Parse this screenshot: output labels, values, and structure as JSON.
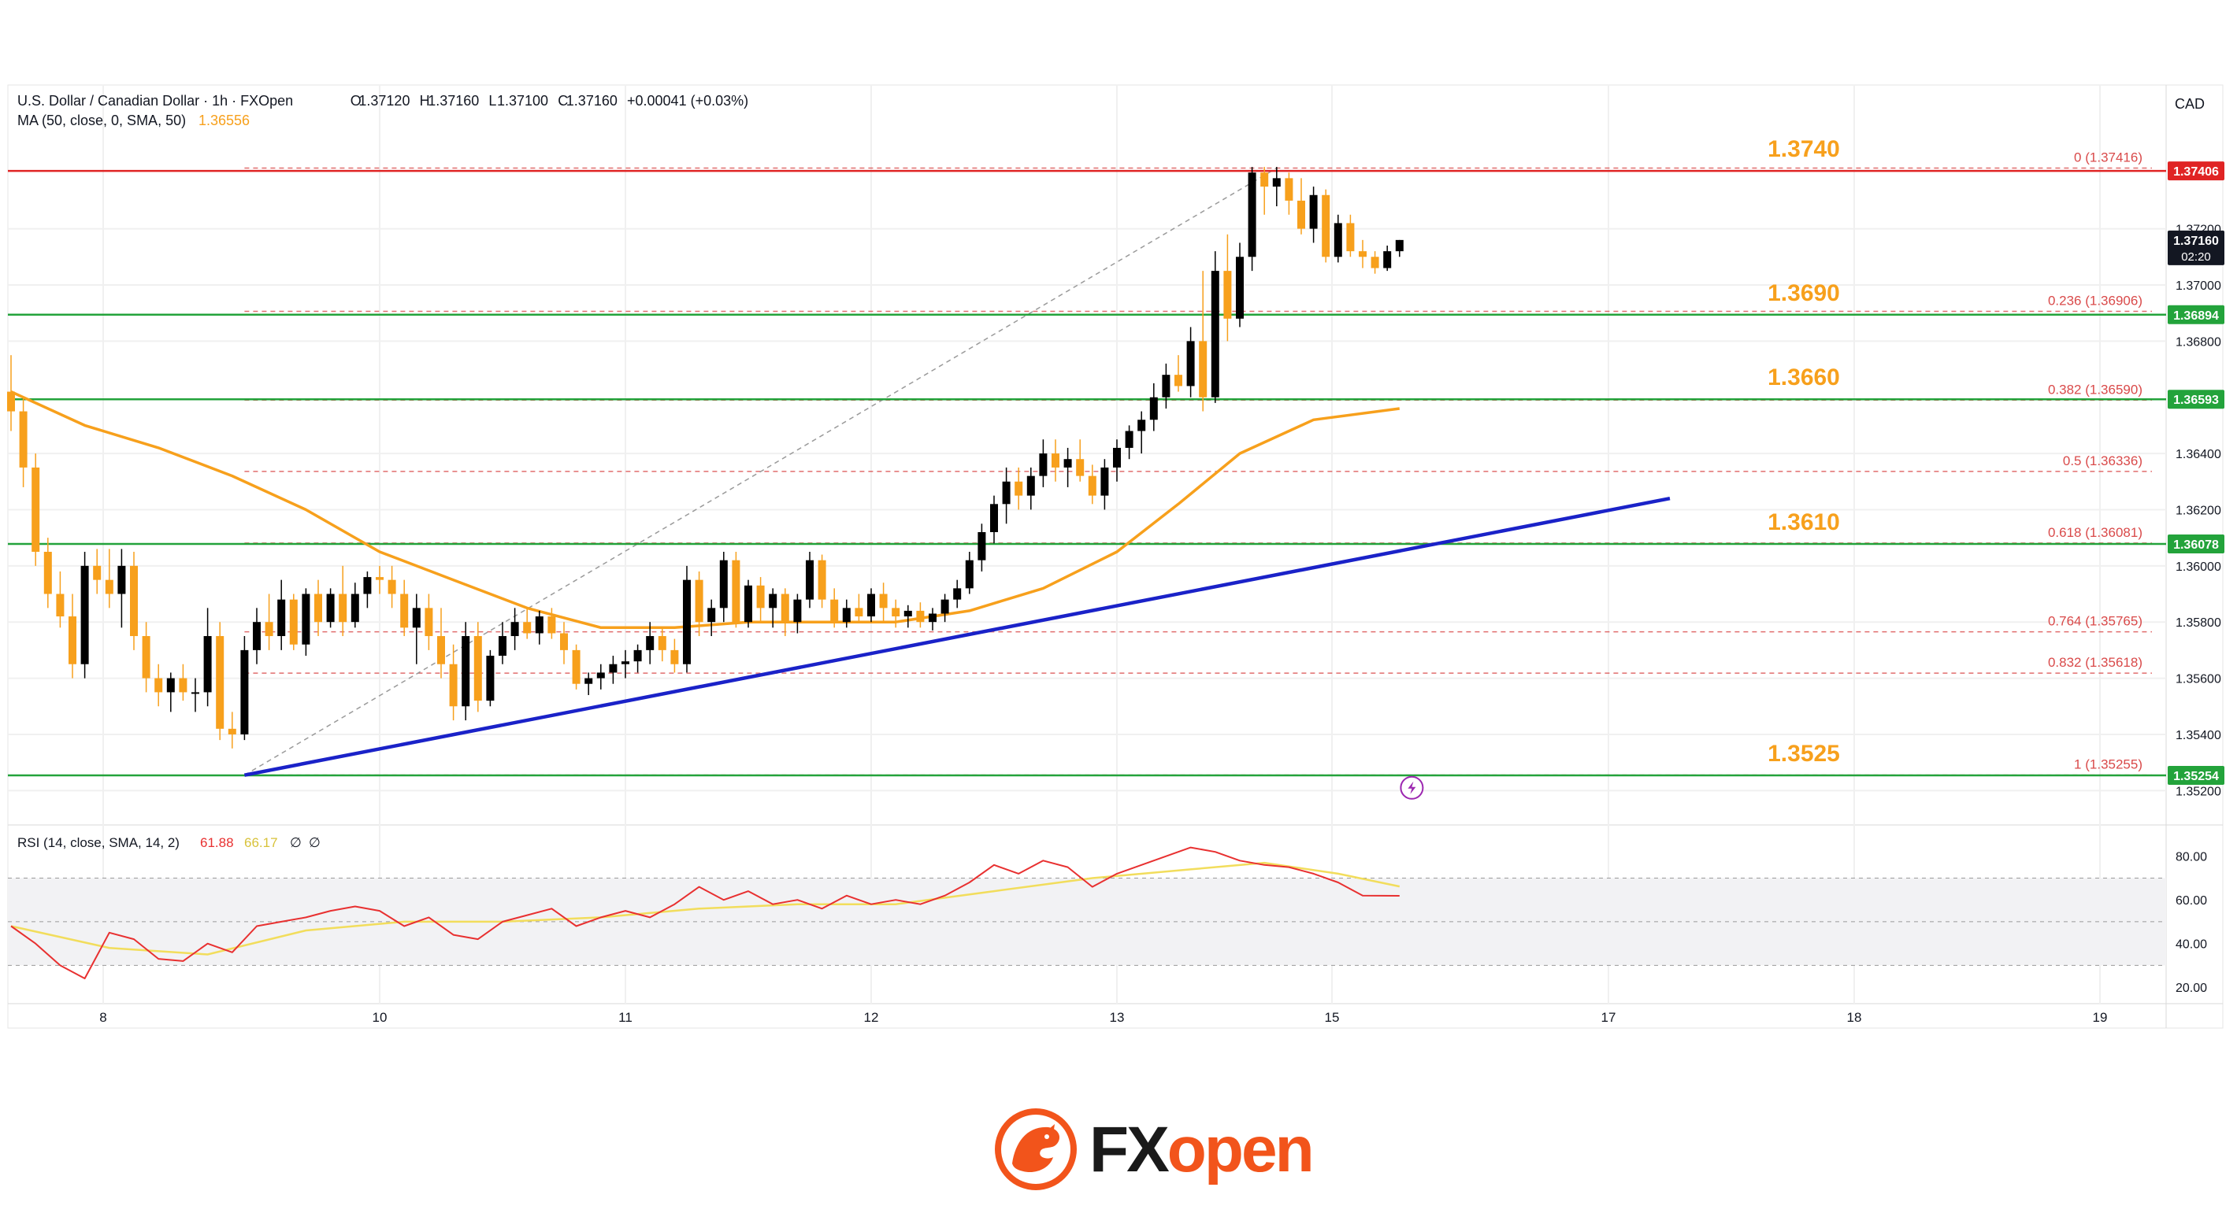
{
  "header": {
    "symbol": "U.S. Dollar / Canadian Dollar · 1h · FXOpen",
    "o_label": "O",
    "o_value": "1.37120",
    "h_label": "H",
    "h_value": "1.37160",
    "l_label": "L",
    "l_value": "1.37100",
    "c_label": "C",
    "c_value": "1.37160",
    "change": "+0.00041 (+0.03%)",
    "ma_label": "MA (50, close, 0, SMA, 50)",
    "ma_value": "1.36556"
  },
  "currency": "CAD",
  "rsi_header": {
    "label": "RSI (14, close, SMA, 14, 2)",
    "rsi_value": "61.88",
    "sma_value": "66.17",
    "extra1": "∅",
    "extra2": "∅"
  },
  "brand": {
    "fx": "FX",
    "open": "open"
  },
  "colors": {
    "up": "#000000",
    "down": "#f7a01c",
    "ma": "#f7a01c",
    "trendline": "#1a22c8",
    "support": "#23a33b",
    "resistance": "#e02424",
    "fib": "#d94a4a",
    "level_label": "#f7a01c",
    "rsi": "#e83030",
    "rsi_ma": "#f2dd5c",
    "brand": "#f2541b"
  },
  "chart_data": {
    "type": "candlestick",
    "ylim": [
      1.351,
      1.3765
    ],
    "x_ticks": [
      {
        "label": "8",
        "t": 7.5
      },
      {
        "label": "10",
        "t": 30
      },
      {
        "label": "11",
        "t": 50
      },
      {
        "label": "12",
        "t": 70
      },
      {
        "label": "13",
        "t": 90
      },
      {
        "label": "15",
        "t": 107.5
      },
      {
        "label": "17",
        "t": 130
      },
      {
        "label": "18",
        "t": 150
      },
      {
        "label": "19",
        "t": 170
      }
    ],
    "y_ticks": [
      "1.37200",
      "1.37000",
      "1.36800",
      "1.36400",
      "1.36200",
      "1.36000",
      "1.35800",
      "1.35600",
      "1.35400",
      "1.35200"
    ],
    "price_tags": [
      {
        "value": 1.37406,
        "text": "1.37406",
        "bg": "#e02424",
        "fg": "#ffffff"
      },
      {
        "value": 1.3716,
        "text": "1.37160",
        "sub": "02:20",
        "bg": "#131722",
        "fg": "#ffffff"
      },
      {
        "value": 1.36894,
        "text": "1.36894",
        "bg": "#23a33b",
        "fg": "#ffffff"
      },
      {
        "value": 1.36593,
        "text": "1.36593",
        "bg": "#23a33b",
        "fg": "#ffffff"
      },
      {
        "value": 1.36078,
        "text": "1.36078",
        "bg": "#23a33b",
        "fg": "#ffffff"
      },
      {
        "value": 1.35254,
        "text": "1.35254",
        "bg": "#23a33b",
        "fg": "#ffffff"
      }
    ],
    "levels": [
      {
        "label": "1.3740",
        "value": 1.37406,
        "kind": "resistance"
      },
      {
        "label": "1.3690",
        "value": 1.36894,
        "kind": "support"
      },
      {
        "label": "1.3660",
        "value": 1.36593,
        "kind": "support"
      },
      {
        "label": "1.3610",
        "value": 1.36078,
        "kind": "support"
      },
      {
        "label": "1.3525",
        "value": 1.35254,
        "kind": "support"
      }
    ],
    "fib_levels": [
      {
        "label": "0 (1.37416)",
        "value": 1.37416
      },
      {
        "label": "0.236 (1.36906)",
        "value": 1.36906
      },
      {
        "label": "0.382 (1.36590)",
        "value": 1.3659
      },
      {
        "label": "0.5 (1.36336)",
        "value": 1.36336
      },
      {
        "label": "0.618 (1.36081)",
        "value": 1.36081
      },
      {
        "label": "0.764 (1.35765)",
        "value": 1.35765
      },
      {
        "label": "0.832 (1.35618)",
        "value": 1.35618
      },
      {
        "label": "1 (1.35255)",
        "value": 1.35255
      }
    ],
    "fib_start_t": 19,
    "trendline": {
      "t1": 19,
      "v1": 1.35255,
      "t2": 135,
      "v2": 1.3624
    },
    "fib_diagonal": {
      "t1": 19,
      "v1": 1.35255,
      "t2": 103,
      "v2": 1.37416
    },
    "candles": [
      [
        0,
        1.3662,
        1.3675,
        1.3648,
        1.3655
      ],
      [
        1,
        1.3655,
        1.366,
        1.3628,
        1.3635
      ],
      [
        2,
        1.3635,
        1.364,
        1.36,
        1.3605
      ],
      [
        3,
        1.3605,
        1.361,
        1.3585,
        1.359
      ],
      [
        4,
        1.359,
        1.3598,
        1.3578,
        1.3582
      ],
      [
        5,
        1.3582,
        1.359,
        1.356,
        1.3565
      ],
      [
        6,
        1.3565,
        1.3605,
        1.356,
        1.36
      ],
      [
        7,
        1.36,
        1.3606,
        1.359,
        1.3595
      ],
      [
        8,
        1.3595,
        1.3606,
        1.3585,
        1.359
      ],
      [
        9,
        1.359,
        1.3606,
        1.3578,
        1.36
      ],
      [
        10,
        1.36,
        1.3605,
        1.357,
        1.3575
      ],
      [
        11,
        1.3575,
        1.358,
        1.3555,
        1.356
      ],
      [
        12,
        1.356,
        1.3565,
        1.355,
        1.3555
      ],
      [
        13,
        1.3555,
        1.3562,
        1.3548,
        1.356
      ],
      [
        14,
        1.356,
        1.3565,
        1.3552,
        1.3555
      ],
      [
        15,
        1.3555,
        1.356,
        1.3548,
        1.3555
      ],
      [
        16,
        1.3555,
        1.3585,
        1.355,
        1.3575
      ],
      [
        17,
        1.3575,
        1.358,
        1.3538,
        1.3542
      ],
      [
        18,
        1.3542,
        1.3548,
        1.3535,
        1.354
      ],
      [
        19,
        1.354,
        1.3575,
        1.3538,
        1.357
      ],
      [
        20,
        1.357,
        1.3585,
        1.3565,
        1.358
      ],
      [
        21,
        1.358,
        1.359,
        1.357,
        1.3575
      ],
      [
        22,
        1.3575,
        1.3595,
        1.357,
        1.3588
      ],
      [
        23,
        1.3588,
        1.359,
        1.357,
        1.3572
      ],
      [
        24,
        1.3572,
        1.3592,
        1.3568,
        1.359
      ],
      [
        25,
        1.359,
        1.3595,
        1.3575,
        1.358
      ],
      [
        26,
        1.358,
        1.3592,
        1.3578,
        1.359
      ],
      [
        27,
        1.359,
        1.36,
        1.3575,
        1.358
      ],
      [
        28,
        1.358,
        1.3594,
        1.3578,
        1.359
      ],
      [
        29,
        1.359,
        1.3598,
        1.3585,
        1.3596
      ],
      [
        30,
        1.3596,
        1.36,
        1.359,
        1.3595
      ],
      [
        31,
        1.3595,
        1.36,
        1.3585,
        1.359
      ],
      [
        32,
        1.359,
        1.3595,
        1.3575,
        1.3578
      ],
      [
        33,
        1.3578,
        1.359,
        1.3565,
        1.3585
      ],
      [
        34,
        1.3585,
        1.359,
        1.357,
        1.3575
      ],
      [
        35,
        1.3575,
        1.3585,
        1.356,
        1.3565
      ],
      [
        36,
        1.3565,
        1.3572,
        1.3545,
        1.355
      ],
      [
        37,
        1.355,
        1.358,
        1.3545,
        1.3575
      ],
      [
        38,
        1.3575,
        1.358,
        1.3548,
        1.3552
      ],
      [
        39,
        1.3552,
        1.357,
        1.355,
        1.3568
      ],
      [
        40,
        1.3568,
        1.358,
        1.3565,
        1.3575
      ],
      [
        41,
        1.3575,
        1.3585,
        1.357,
        1.358
      ],
      [
        42,
        1.358,
        1.3585,
        1.3574,
        1.3576
      ],
      [
        43,
        1.3576,
        1.3584,
        1.3572,
        1.3582
      ],
      [
        44,
        1.3582,
        1.3585,
        1.3574,
        1.3576
      ],
      [
        45,
        1.3576,
        1.358,
        1.3565,
        1.357
      ],
      [
        46,
        1.357,
        1.3572,
        1.3556,
        1.3558
      ],
      [
        47,
        1.3558,
        1.3562,
        1.3554,
        1.356
      ],
      [
        48,
        1.356,
        1.3565,
        1.3556,
        1.3562
      ],
      [
        49,
        1.3562,
        1.3568,
        1.3558,
        1.3565
      ],
      [
        50,
        1.3565,
        1.357,
        1.356,
        1.3566
      ],
      [
        51,
        1.3566,
        1.3572,
        1.3562,
        1.357
      ],
      [
        52,
        1.357,
        1.358,
        1.3565,
        1.3575
      ],
      [
        53,
        1.3575,
        1.3578,
        1.3566,
        1.357
      ],
      [
        54,
        1.357,
        1.3574,
        1.3562,
        1.3565
      ],
      [
        55,
        1.3565,
        1.36,
        1.3562,
        1.3595
      ],
      [
        56,
        1.3595,
        1.3598,
        1.3575,
        1.358
      ],
      [
        57,
        1.358,
        1.3588,
        1.3575,
        1.3585
      ],
      [
        58,
        1.3585,
        1.3605,
        1.358,
        1.3602
      ],
      [
        59,
        1.3602,
        1.3605,
        1.3578,
        1.358
      ],
      [
        60,
        1.358,
        1.3595,
        1.3578,
        1.3593
      ],
      [
        61,
        1.3593,
        1.3596,
        1.358,
        1.3585
      ],
      [
        62,
        1.3585,
        1.3592,
        1.3578,
        1.359
      ],
      [
        63,
        1.359,
        1.3592,
        1.3575,
        1.358
      ],
      [
        64,
        1.358,
        1.359,
        1.3576,
        1.3588
      ],
      [
        65,
        1.3588,
        1.3605,
        1.3585,
        1.3602
      ],
      [
        66,
        1.3602,
        1.3604,
        1.3585,
        1.3588
      ],
      [
        67,
        1.3588,
        1.3592,
        1.3578,
        1.358
      ],
      [
        68,
        1.358,
        1.3588,
        1.3578,
        1.3585
      ],
      [
        69,
        1.3585,
        1.359,
        1.358,
        1.3582
      ],
      [
        70,
        1.3582,
        1.3592,
        1.358,
        1.359
      ],
      [
        71,
        1.359,
        1.3594,
        1.358,
        1.3585
      ],
      [
        72,
        1.3585,
        1.3588,
        1.3578,
        1.3582
      ],
      [
        73,
        1.3582,
        1.3586,
        1.3578,
        1.3584
      ],
      [
        74,
        1.3584,
        1.3587,
        1.3578,
        1.358
      ],
      [
        75,
        1.358,
        1.3585,
        1.3577,
        1.3583
      ],
      [
        76,
        1.3583,
        1.359,
        1.358,
        1.3588
      ],
      [
        77,
        1.3588,
        1.3595,
        1.3585,
        1.3592
      ],
      [
        78,
        1.3592,
        1.3605,
        1.359,
        1.3602
      ],
      [
        79,
        1.3602,
        1.3615,
        1.3598,
        1.3612
      ],
      [
        80,
        1.3612,
        1.3625,
        1.3608,
        1.3622
      ],
      [
        81,
        1.3622,
        1.3635,
        1.3615,
        1.363
      ],
      [
        82,
        1.363,
        1.3635,
        1.362,
        1.3625
      ],
      [
        83,
        1.3625,
        1.3635,
        1.362,
        1.3632
      ],
      [
        84,
        1.3632,
        1.3645,
        1.3628,
        1.364
      ],
      [
        85,
        1.364,
        1.3645,
        1.363,
        1.3635
      ],
      [
        86,
        1.3635,
        1.3642,
        1.3628,
        1.3638
      ],
      [
        87,
        1.3638,
        1.3645,
        1.363,
        1.3632
      ],
      [
        88,
        1.3632,
        1.3636,
        1.3622,
        1.3625
      ],
      [
        89,
        1.3625,
        1.3638,
        1.362,
        1.3635
      ],
      [
        90,
        1.3635,
        1.3645,
        1.363,
        1.3642
      ],
      [
        91,
        1.3642,
        1.365,
        1.3638,
        1.3648
      ],
      [
        92,
        1.3648,
        1.3655,
        1.364,
        1.3652
      ],
      [
        93,
        1.3652,
        1.3665,
        1.3648,
        1.366
      ],
      [
        94,
        1.366,
        1.3672,
        1.3656,
        1.3668
      ],
      [
        95,
        1.3668,
        1.3675,
        1.3662,
        1.3664
      ],
      [
        96,
        1.3664,
        1.3685,
        1.366,
        1.368
      ],
      [
        97,
        1.368,
        1.3705,
        1.3655,
        1.366
      ],
      [
        98,
        1.366,
        1.3712,
        1.3658,
        1.3705
      ],
      [
        99,
        1.3705,
        1.3718,
        1.368,
        1.3688
      ],
      [
        100,
        1.3688,
        1.3715,
        1.3685,
        1.371
      ],
      [
        101,
        1.371,
        1.3742,
        1.3705,
        1.374
      ],
      [
        102,
        1.374,
        1.3742,
        1.3725,
        1.3735
      ],
      [
        103,
        1.3735,
        1.3742,
        1.3728,
        1.3738
      ],
      [
        104,
        1.3738,
        1.374,
        1.3725,
        1.373
      ],
      [
        105,
        1.373,
        1.3738,
        1.3718,
        1.372
      ],
      [
        106,
        1.372,
        1.3735,
        1.3715,
        1.3732
      ],
      [
        107,
        1.3732,
        1.3734,
        1.3708,
        1.371
      ],
      [
        108,
        1.371,
        1.3725,
        1.3708,
        1.3722
      ],
      [
        109,
        1.3722,
        1.3725,
        1.371,
        1.3712
      ],
      [
        110,
        1.3712,
        1.3716,
        1.3706,
        1.371
      ],
      [
        111,
        1.371,
        1.3712,
        1.3704,
        1.3706
      ],
      [
        112,
        1.3706,
        1.3714,
        1.3705,
        1.3712
      ],
      [
        113,
        1.3712,
        1.3716,
        1.371,
        1.3716
      ]
    ],
    "ma_points": [
      [
        0,
        1.3662
      ],
      [
        6,
        1.365
      ],
      [
        12,
        1.3642
      ],
      [
        18,
        1.3632
      ],
      [
        24,
        1.362
      ],
      [
        30,
        1.3605
      ],
      [
        36,
        1.3595
      ],
      [
        42,
        1.3585
      ],
      [
        48,
        1.3578
      ],
      [
        54,
        1.3578
      ],
      [
        60,
        1.358
      ],
      [
        66,
        1.358
      ],
      [
        72,
        1.358
      ],
      [
        78,
        1.3584
      ],
      [
        84,
        1.3592
      ],
      [
        90,
        1.3605
      ],
      [
        95,
        1.3622
      ],
      [
        100,
        1.364
      ],
      [
        106,
        1.3652
      ],
      [
        113,
        1.3656
      ]
    ],
    "rsi_ylim": [
      15,
      90
    ],
    "rsi_ticks": [
      "80.00",
      "60.00",
      "40.00",
      "20.00"
    ],
    "rsi_bands": [
      70,
      50,
      30
    ],
    "rsi": [
      [
        0,
        48
      ],
      [
        2,
        40
      ],
      [
        4,
        30
      ],
      [
        6,
        24
      ],
      [
        8,
        45
      ],
      [
        10,
        42
      ],
      [
        12,
        33
      ],
      [
        14,
        32
      ],
      [
        16,
        40
      ],
      [
        18,
        36
      ],
      [
        20,
        48
      ],
      [
        22,
        50
      ],
      [
        24,
        52
      ],
      [
        26,
        55
      ],
      [
        28,
        57
      ],
      [
        30,
        55
      ],
      [
        32,
        48
      ],
      [
        34,
        52
      ],
      [
        36,
        44
      ],
      [
        38,
        42
      ],
      [
        40,
        50
      ],
      [
        42,
        53
      ],
      [
        44,
        56
      ],
      [
        46,
        48
      ],
      [
        48,
        52
      ],
      [
        50,
        55
      ],
      [
        52,
        52
      ],
      [
        54,
        58
      ],
      [
        56,
        66
      ],
      [
        58,
        60
      ],
      [
        60,
        64
      ],
      [
        62,
        58
      ],
      [
        64,
        60
      ],
      [
        66,
        56
      ],
      [
        68,
        62
      ],
      [
        70,
        58
      ],
      [
        72,
        60
      ],
      [
        74,
        58
      ],
      [
        76,
        62
      ],
      [
        78,
        68
      ],
      [
        80,
        76
      ],
      [
        82,
        72
      ],
      [
        84,
        78
      ],
      [
        86,
        75
      ],
      [
        88,
        66
      ],
      [
        90,
        72
      ],
      [
        92,
        76
      ],
      [
        94,
        80
      ],
      [
        96,
        84
      ],
      [
        98,
        82
      ],
      [
        100,
        78
      ],
      [
        102,
        76
      ],
      [
        104,
        75
      ],
      [
        106,
        72
      ],
      [
        108,
        68
      ],
      [
        110,
        62
      ],
      [
        113,
        61.88
      ]
    ],
    "rsi_ma": [
      [
        0,
        48
      ],
      [
        8,
        38
      ],
      [
        16,
        35
      ],
      [
        24,
        46
      ],
      [
        32,
        50
      ],
      [
        40,
        50
      ],
      [
        48,
        52
      ],
      [
        56,
        56
      ],
      [
        64,
        58
      ],
      [
        72,
        58
      ],
      [
        80,
        64
      ],
      [
        88,
        70
      ],
      [
        96,
        74
      ],
      [
        102,
        77
      ],
      [
        108,
        72
      ],
      [
        113,
        66.17
      ]
    ]
  }
}
